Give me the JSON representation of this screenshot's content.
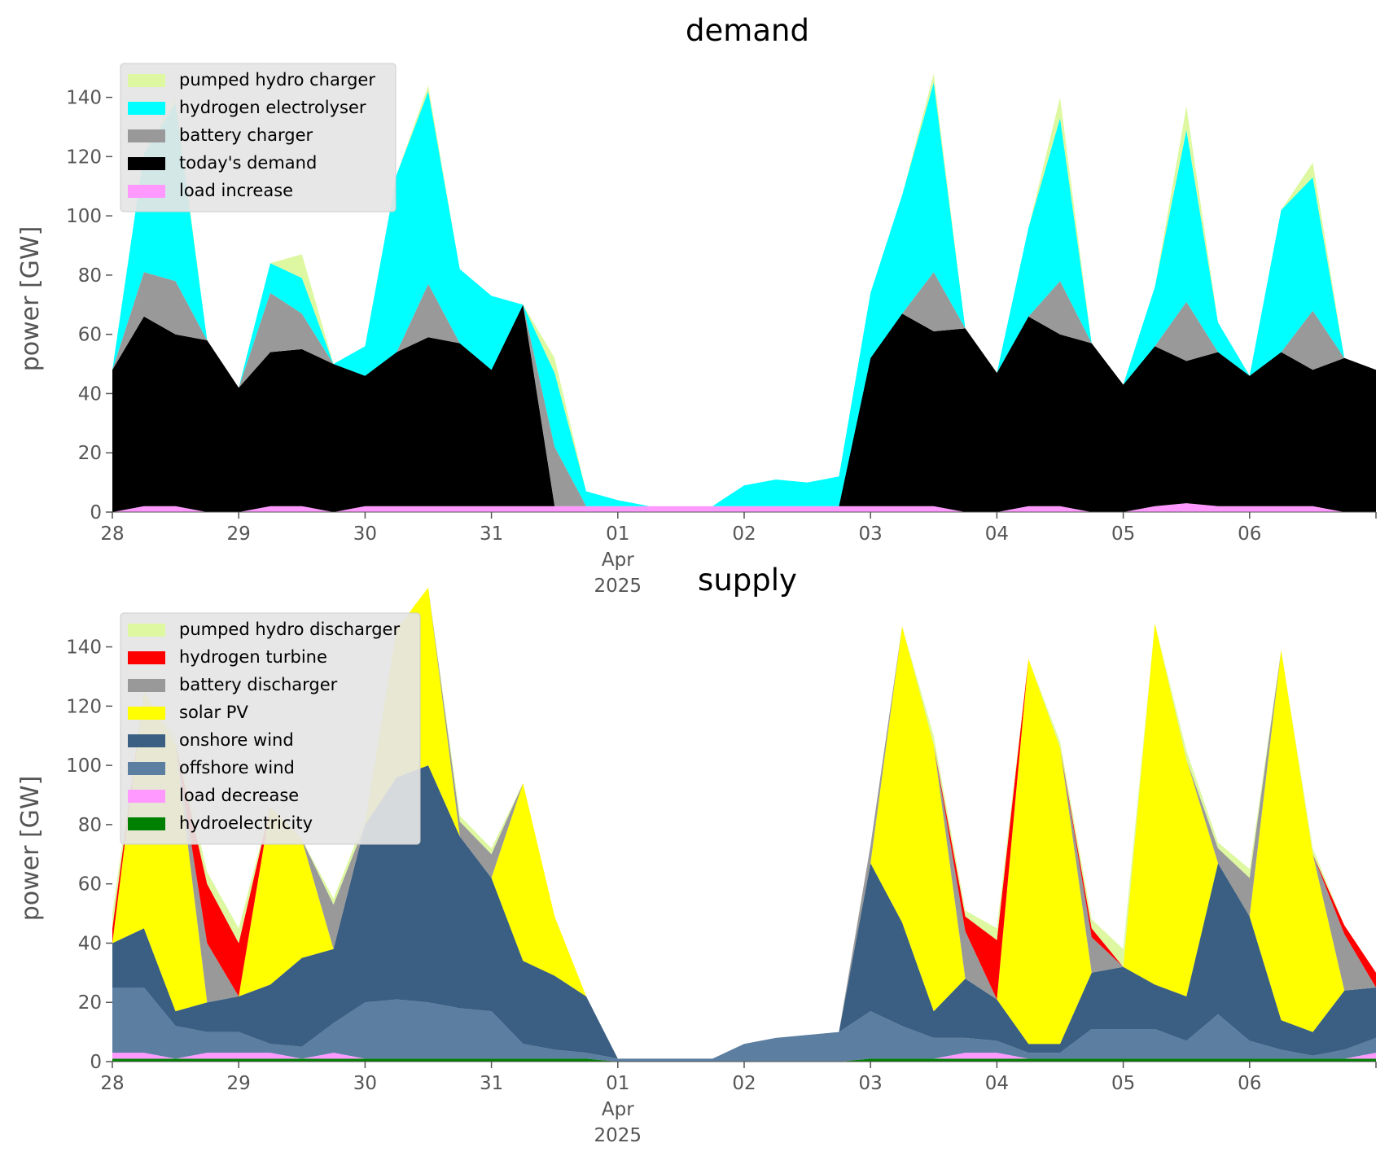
{
  "chart_data": [
    {
      "type": "area",
      "stacked": true,
      "title": "demand",
      "xlabel": "",
      "ylabel": "power [GW]",
      "ylim": [
        0,
        155
      ],
      "yticks": [
        0,
        20,
        40,
        60,
        80,
        100,
        120,
        140
      ],
      "xlim": [
        "2025-03-28",
        "2025-04-07"
      ],
      "xticks": [
        {
          "date": "2025-03-28",
          "label": "28"
        },
        {
          "date": "2025-03-29",
          "label": "29"
        },
        {
          "date": "2025-03-30",
          "label": "30"
        },
        {
          "date": "2025-03-31",
          "label": "31"
        },
        {
          "date": "2025-04-01",
          "label": "01",
          "sub1": "Apr",
          "sub2": "2025"
        },
        {
          "date": "2025-04-02",
          "label": "02"
        },
        {
          "date": "2025-04-03",
          "label": "03"
        },
        {
          "date": "2025-04-04",
          "label": "04"
        },
        {
          "date": "2025-04-05",
          "label": "05"
        },
        {
          "date": "2025-04-06",
          "label": "06"
        }
      ],
      "grid": false,
      "legend_placement": "top-left",
      "x": [
        "2025-03-28 00:00",
        "2025-03-28 06:00",
        "2025-03-28 12:00",
        "2025-03-28 18:00",
        "2025-03-29 00:00",
        "2025-03-29 06:00",
        "2025-03-29 12:00",
        "2025-03-29 18:00",
        "2025-03-30 00:00",
        "2025-03-30 06:00",
        "2025-03-30 12:00",
        "2025-03-30 18:00",
        "2025-03-31 00:00",
        "2025-03-31 06:00",
        "2025-03-31 12:00",
        "2025-03-31 18:00",
        "2025-04-01 00:00",
        "2025-04-01 06:00",
        "2025-04-01 12:00",
        "2025-04-01 18:00",
        "2025-04-02 00:00",
        "2025-04-02 06:00",
        "2025-04-02 12:00",
        "2025-04-02 18:00",
        "2025-04-03 00:00",
        "2025-04-03 06:00",
        "2025-04-03 12:00",
        "2025-04-03 18:00",
        "2025-04-04 00:00",
        "2025-04-04 06:00",
        "2025-04-04 12:00",
        "2025-04-04 18:00",
        "2025-04-05 00:00",
        "2025-04-05 06:00",
        "2025-04-05 12:00",
        "2025-04-05 18:00",
        "2025-04-06 00:00",
        "2025-04-06 06:00",
        "2025-04-06 12:00",
        "2025-04-06 18:00",
        "2025-04-07 00:00"
      ],
      "series": [
        {
          "name": "load increase",
          "color": "#ff99ff",
          "values": [
            0,
            2,
            2,
            0,
            0,
            2,
            2,
            0,
            2,
            2,
            2,
            2,
            2,
            2,
            2,
            2,
            2,
            2,
            2,
            2,
            2,
            2,
            2,
            2,
            2,
            2,
            2,
            0,
            0,
            2,
            2,
            0,
            0,
            2,
            3,
            2,
            2,
            2,
            2,
            0,
            0
          ]
        },
        {
          "name": "today's demand",
          "color": "#000000",
          "values": [
            48,
            64,
            58,
            58,
            42,
            52,
            53,
            50,
            44,
            52,
            57,
            55,
            46,
            68,
            0,
            0,
            0,
            0,
            0,
            0,
            0,
            0,
            0,
            0,
            50,
            65,
            59,
            62,
            47,
            64,
            58,
            57,
            43,
            54,
            48,
            52,
            44,
            52,
            46,
            52,
            48
          ]
        },
        {
          "name": "battery charger",
          "color": "#999999",
          "values": [
            0,
            15,
            18,
            0,
            0,
            20,
            12,
            0,
            0,
            0,
            18,
            0,
            0,
            0,
            20,
            0,
            0,
            0,
            0,
            0,
            0,
            0,
            0,
            0,
            0,
            0,
            20,
            0,
            0,
            0,
            18,
            0,
            0,
            0,
            20,
            0,
            0,
            0,
            20,
            0,
            0
          ]
        },
        {
          "name": "hydrogen electrolyser",
          "color": "#00ffff",
          "values": [
            0,
            40,
            60,
            0,
            0,
            10,
            12,
            0,
            10,
            60,
            65,
            25,
            25,
            0,
            25,
            5,
            2,
            0,
            0,
            0,
            7,
            9,
            8,
            10,
            22,
            40,
            64,
            0,
            0,
            30,
            55,
            0,
            0,
            20,
            58,
            10,
            0,
            48,
            45,
            0,
            0
          ]
        },
        {
          "name": "pumped hydro charger",
          "color": "#ddf8a0",
          "values": [
            0,
            0,
            2,
            0,
            0,
            0,
            8,
            0,
            0,
            0,
            2,
            0,
            0,
            0,
            5,
            0,
            0,
            0,
            0,
            0,
            0,
            0,
            0,
            0,
            0,
            0,
            3,
            0,
            0,
            0,
            7,
            0,
            0,
            0,
            8,
            0,
            0,
            0,
            5,
            0,
            0
          ]
        }
      ]
    },
    {
      "type": "area",
      "stacked": true,
      "title": "supply",
      "xlabel": "",
      "ylabel": "power [GW]",
      "ylim": [
        0,
        155
      ],
      "yticks": [
        0,
        20,
        40,
        60,
        80,
        100,
        120,
        140
      ],
      "xlim": [
        "2025-03-28",
        "2025-04-07"
      ],
      "xticks": [
        {
          "date": "2025-03-28",
          "label": "28"
        },
        {
          "date": "2025-03-29",
          "label": "29"
        },
        {
          "date": "2025-03-30",
          "label": "30"
        },
        {
          "date": "2025-03-31",
          "label": "31"
        },
        {
          "date": "2025-04-01",
          "label": "01",
          "sub1": "Apr",
          "sub2": "2025"
        },
        {
          "date": "2025-04-02",
          "label": "02"
        },
        {
          "date": "2025-04-03",
          "label": "03"
        },
        {
          "date": "2025-04-04",
          "label": "04"
        },
        {
          "date": "2025-04-05",
          "label": "05"
        },
        {
          "date": "2025-04-06",
          "label": "06"
        }
      ],
      "grid": false,
      "legend_placement": "top-left",
      "x": [
        "2025-03-28 00:00",
        "2025-03-28 06:00",
        "2025-03-28 12:00",
        "2025-03-28 18:00",
        "2025-03-29 00:00",
        "2025-03-29 06:00",
        "2025-03-29 12:00",
        "2025-03-29 18:00",
        "2025-03-30 00:00",
        "2025-03-30 06:00",
        "2025-03-30 12:00",
        "2025-03-30 18:00",
        "2025-03-31 00:00",
        "2025-03-31 06:00",
        "2025-03-31 12:00",
        "2025-03-31 18:00",
        "2025-04-01 00:00",
        "2025-04-01 06:00",
        "2025-04-01 12:00",
        "2025-04-01 18:00",
        "2025-04-02 00:00",
        "2025-04-02 06:00",
        "2025-04-02 12:00",
        "2025-04-02 18:00",
        "2025-04-03 00:00",
        "2025-04-03 06:00",
        "2025-04-03 12:00",
        "2025-04-03 18:00",
        "2025-04-04 00:00",
        "2025-04-04 06:00",
        "2025-04-04 12:00",
        "2025-04-04 18:00",
        "2025-04-05 00:00",
        "2025-04-05 06:00",
        "2025-04-05 12:00",
        "2025-04-05 18:00",
        "2025-04-06 00:00",
        "2025-04-06 06:00",
        "2025-04-06 12:00",
        "2025-04-06 18:00",
        "2025-04-07 00:00"
      ],
      "series": [
        {
          "name": "hydroelectricity",
          "color": "#008000",
          "values": [
            1,
            1,
            1,
            1,
            1,
            1,
            1,
            1,
            1,
            1,
            1,
            1,
            1,
            1,
            1,
            1,
            0,
            0,
            0,
            0,
            0,
            0,
            0,
            0,
            1,
            1,
            1,
            1,
            1,
            1,
            1,
            1,
            1,
            1,
            1,
            1,
            1,
            1,
            1,
            1,
            1
          ]
        },
        {
          "name": "load decrease",
          "color": "#ff99ff",
          "values": [
            2,
            2,
            0,
            2,
            2,
            2,
            0,
            2,
            0,
            0,
            0,
            0,
            0,
            0,
            0,
            0,
            0,
            0,
            0,
            0,
            0,
            0,
            0,
            0,
            0,
            0,
            0,
            2,
            2,
            0,
            0,
            0,
            0,
            0,
            0,
            0,
            0,
            0,
            0,
            0,
            2
          ]
        },
        {
          "name": "offshore wind",
          "color": "#5b7ea1",
          "values": [
            22,
            22,
            11,
            7,
            7,
            3,
            4,
            10,
            19,
            20,
            19,
            17,
            16,
            5,
            3,
            2,
            1,
            1,
            1,
            1,
            6,
            8,
            9,
            10,
            16,
            11,
            7,
            5,
            4,
            2,
            2,
            10,
            10,
            10,
            6,
            15,
            6,
            3,
            1,
            3,
            5
          ]
        },
        {
          "name": "onshore wind",
          "color": "#3a5f82",
          "values": [
            15,
            20,
            5,
            10,
            12,
            20,
            30,
            25,
            60,
            75,
            80,
            58,
            45,
            28,
            25,
            19,
            0,
            0,
            0,
            0,
            0,
            0,
            0,
            0,
            50,
            35,
            9,
            20,
            14,
            3,
            3,
            19,
            21,
            15,
            15,
            51,
            42,
            10,
            8,
            20,
            17
          ]
        },
        {
          "name": "solar PV",
          "color": "#ffff00",
          "values": [
            0,
            80,
            90,
            0,
            0,
            60,
            40,
            0,
            0,
            50,
            60,
            0,
            0,
            60,
            20,
            0,
            0,
            0,
            0,
            0,
            0,
            0,
            0,
            0,
            0,
            100,
            90,
            0,
            0,
            130,
            100,
            0,
            0,
            122,
            80,
            0,
            0,
            125,
            60,
            0,
            0
          ]
        },
        {
          "name": "battery discharger",
          "color": "#999999",
          "values": [
            0,
            0,
            0,
            20,
            0,
            0,
            0,
            15,
            0,
            0,
            0,
            5,
            8,
            0,
            0,
            0,
            0,
            0,
            0,
            0,
            0,
            0,
            0,
            0,
            6,
            0,
            0,
            16,
            0,
            0,
            0,
            12,
            0,
            0,
            0,
            5,
            13,
            0,
            0,
            19,
            0
          ]
        },
        {
          "name": "hydrogen turbine",
          "color": "#ff0000",
          "values": [
            5,
            0,
            0,
            20,
            18,
            0,
            0,
            0,
            0,
            0,
            0,
            0,
            0,
            0,
            0,
            0,
            0,
            0,
            0,
            0,
            0,
            0,
            0,
            0,
            0,
            0,
            0,
            5,
            20,
            0,
            0,
            3,
            0,
            0,
            0,
            0,
            0,
            0,
            0,
            3,
            5
          ]
        },
        {
          "name": "pumped hydro discharger",
          "color": "#ddf8a0",
          "values": [
            5,
            0,
            3,
            4,
            5,
            0,
            0,
            2,
            2,
            0,
            0,
            2,
            2,
            0,
            0,
            0,
            0,
            0,
            0,
            0,
            0,
            0,
            0,
            0,
            0,
            0,
            3,
            2,
            4,
            0,
            2,
            3,
            6,
            0,
            3,
            2,
            3,
            0,
            2,
            0,
            0
          ]
        }
      ]
    }
  ]
}
